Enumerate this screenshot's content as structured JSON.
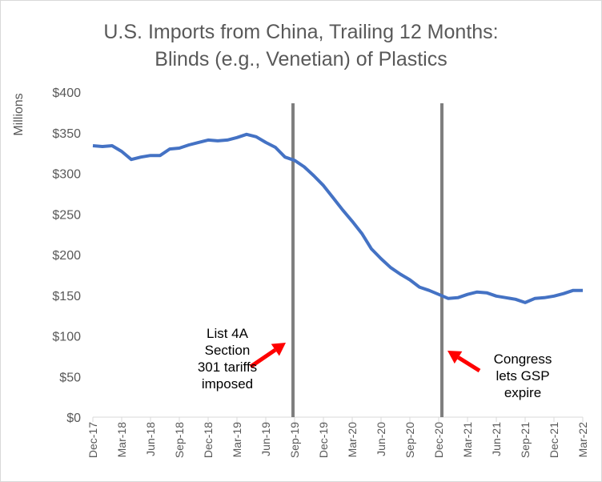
{
  "chart_data": {
    "type": "line",
    "title_line1": "U.S. Imports from China, Trailing 12 Months:",
    "title_line2": "Blinds (e.g., Venetian) of Plastics",
    "ylabel": "Millions",
    "ylim": [
      0,
      400
    ],
    "yticks": [
      "$0",
      "$50",
      "$100",
      "$150",
      "$200",
      "$250",
      "$300",
      "$350",
      "$400"
    ],
    "x": [
      "Dec-17",
      "Jan-18",
      "Feb-18",
      "Mar-18",
      "Apr-18",
      "May-18",
      "Jun-18",
      "Jul-18",
      "Aug-18",
      "Sep-18",
      "Oct-18",
      "Nov-18",
      "Dec-18",
      "Jan-19",
      "Feb-19",
      "Mar-19",
      "Apr-19",
      "May-19",
      "Jun-19",
      "Jul-19",
      "Aug-19",
      "Sep-19",
      "Oct-19",
      "Nov-19",
      "Dec-19",
      "Jan-20",
      "Feb-20",
      "Mar-20",
      "Apr-20",
      "May-20",
      "Jun-20",
      "Jul-20",
      "Aug-20",
      "Sep-20",
      "Oct-20",
      "Nov-20",
      "Dec-20",
      "Jan-21",
      "Feb-21",
      "Mar-21",
      "Apr-21",
      "May-21",
      "Jun-21",
      "Jul-21",
      "Aug-21",
      "Sep-21",
      "Oct-21",
      "Nov-21",
      "Dec-21",
      "Jan-22",
      "Feb-22",
      "Mar-22"
    ],
    "xtick_labels": [
      "Dec-17",
      "Mar-18",
      "Jun-18",
      "Sep-18",
      "Dec-18",
      "Mar-19",
      "Jun-19",
      "Sep-19",
      "Dec-19",
      "Mar-20",
      "Jun-20",
      "Sep-20",
      "Dec-20",
      "Mar-21",
      "Jun-21",
      "Sep-21",
      "Dec-21",
      "Mar-22"
    ],
    "series": [
      {
        "values": [
          334,
          333,
          334,
          327,
          317,
          320,
          322,
          322,
          330,
          331,
          335,
          338,
          341,
          340,
          341,
          344,
          348,
          345,
          338,
          332,
          320,
          316,
          308,
          297,
          285,
          270,
          255,
          241,
          226,
          207,
          195,
          184,
          176,
          169,
          160,
          156,
          151,
          146,
          147,
          151,
          154,
          153,
          149,
          147,
          145,
          141,
          146,
          147,
          149,
          152,
          156,
          156
        ],
        "color": "#4472C4"
      }
    ],
    "event_lines": [
      {
        "x": "Sep-19",
        "color": "#7F7F7F"
      },
      {
        "x": "Dec-20",
        "color": "#7F7F7F"
      }
    ],
    "annotations": [
      {
        "lines": [
          "List 4A",
          "Section",
          "301 tariffs",
          "imposed"
        ],
        "arrow_color": "#FF0000"
      },
      {
        "lines": [
          "Congress",
          "lets GSP",
          "expire"
        ],
        "arrow_color": "#FF0000"
      }
    ],
    "grid": false,
    "legend": "none"
  }
}
